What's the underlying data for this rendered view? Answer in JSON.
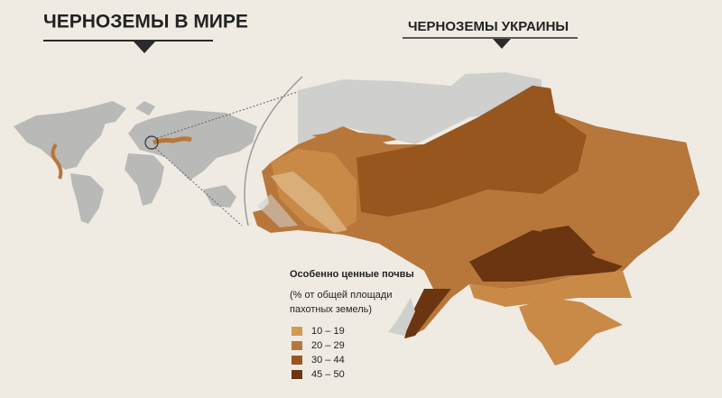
{
  "header": {
    "title": "ЧЕРНОЗЕМЫ В МИРЕ"
  },
  "ukraine": {
    "title": "ЧЕРНОЗЕМЫ УКРАИНЫ"
  },
  "legend": {
    "title": "Особенно ценные почвы",
    "subtitle_lines": [
      "(% от общей площади",
      "пахотных земель)"
    ],
    "items": [
      {
        "label": "10 – 19",
        "color": "#d39a55"
      },
      {
        "label": "20 – 29",
        "color": "#b8773a"
      },
      {
        "label": "30 – 44",
        "color": "#98561f"
      },
      {
        "label": "45 – 50",
        "color": "#6a3510"
      }
    ]
  }
}
